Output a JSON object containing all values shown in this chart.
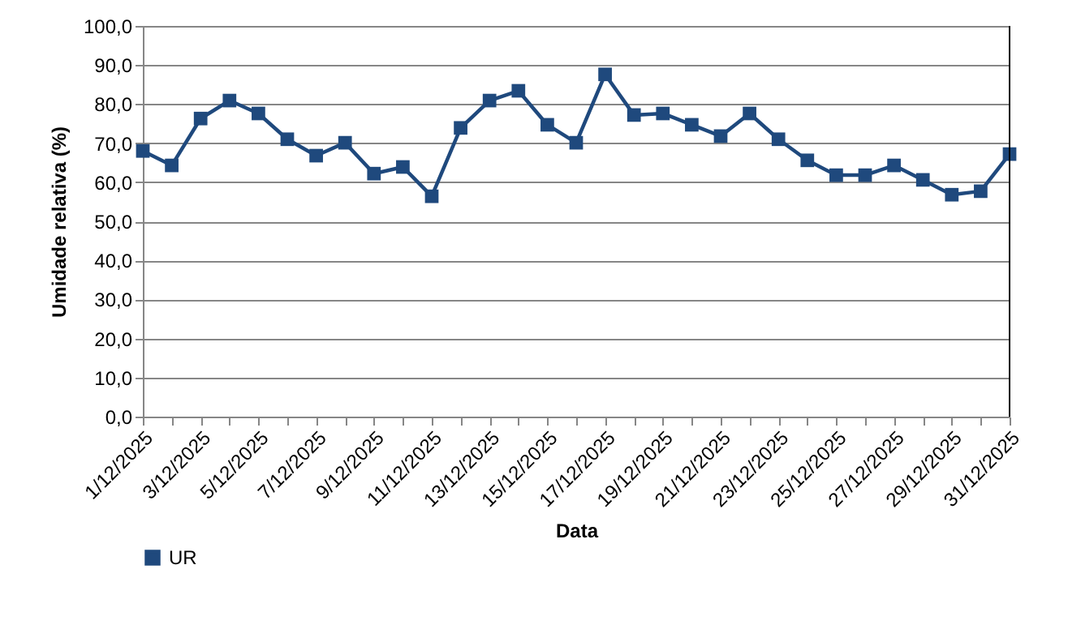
{
  "chart_data": {
    "type": "line",
    "xlabel": "Data",
    "ylabel": "Umidade relativa (%)",
    "categories": [
      "1/12/2025",
      null,
      "3/12/2025",
      null,
      "5/12/2025",
      null,
      "7/12/2025",
      null,
      "9/12/2025",
      null,
      "11/12/2025",
      null,
      "13/12/2025",
      null,
      "15/12/2025",
      null,
      "17/12/2025",
      null,
      "19/12/2025",
      null,
      "21/12/2025",
      null,
      "23/12/2025",
      null,
      "25/12/2025",
      null,
      "27/12/2025",
      null,
      "29/12/2025",
      null,
      "31/12/2025"
    ],
    "series": [
      {
        "name": "UR",
        "color": "#1f497d",
        "values": [
          68.0,
          64.3,
          76.3,
          80.9,
          77.6,
          71.0,
          66.8,
          70.1,
          62.2,
          63.9,
          56.4,
          73.9,
          80.9,
          83.4,
          74.7,
          70.1,
          87.6,
          77.2,
          77.6,
          74.7,
          71.8,
          77.6,
          71.0,
          65.6,
          61.8,
          61.8,
          64.3,
          60.6,
          56.8,
          57.7,
          67.2
        ]
      }
    ],
    "ylim": [
      0,
      100
    ],
    "yticks": [
      {
        "value": 0,
        "label": "0,0"
      },
      {
        "value": 10,
        "label": "10,0"
      },
      {
        "value": 20,
        "label": "20,0"
      },
      {
        "value": 30,
        "label": "30,0"
      },
      {
        "value": 40,
        "label": "40,0"
      },
      {
        "value": 50,
        "label": "50,0"
      },
      {
        "value": 60,
        "label": "60,0"
      },
      {
        "value": 70,
        "label": "70,0"
      },
      {
        "value": 80,
        "label": "80,0"
      },
      {
        "value": 90,
        "label": "90,0"
      },
      {
        "value": 100,
        "label": "100,0"
      }
    ],
    "grid": "y",
    "legend": "bottom",
    "marker": "square",
    "line_style": "solid"
  }
}
